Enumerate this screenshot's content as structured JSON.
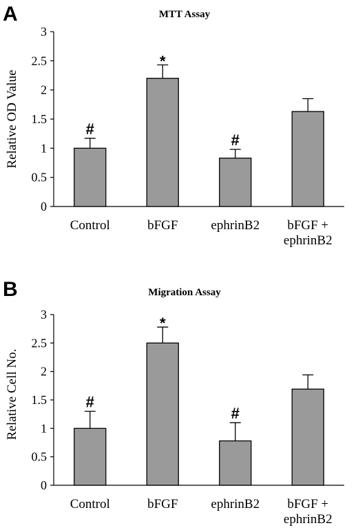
{
  "chart_data": [
    {
      "type": "bar",
      "panel_label": "A",
      "title": "MTT Assay",
      "ylabel": "Relative OD Value",
      "xlabel": "",
      "ylim": [
        0,
        3
      ],
      "yticks": [
        "0",
        "0.5",
        "1",
        "1.5",
        "2",
        "2.5",
        "3"
      ],
      "categories": [
        [
          "Control"
        ],
        [
          "bFGF"
        ],
        [
          "ephrinB2"
        ],
        [
          "bFGF +",
          "ephrinB2"
        ]
      ],
      "values": [
        1.0,
        2.2,
        0.83,
        1.63
      ],
      "errors": [
        0.17,
        0.23,
        0.15,
        0.22
      ],
      "markers": [
        "#",
        "*",
        "#",
        ""
      ],
      "bar_color": "#9a9a9a"
    },
    {
      "type": "bar",
      "panel_label": "B",
      "title": "Migration Assay",
      "ylabel": "Relative Cell No.",
      "xlabel": "",
      "ylim": [
        0,
        3
      ],
      "yticks": [
        "0",
        "0.5",
        "1",
        "1.5",
        "2",
        "2.5",
        "3"
      ],
      "categories": [
        [
          "Control"
        ],
        [
          "bFGF"
        ],
        [
          "ephrinB2"
        ],
        [
          "bFGF +",
          "ephrinB2"
        ]
      ],
      "values": [
        1.0,
        2.5,
        0.78,
        1.69
      ],
      "errors": [
        0.3,
        0.28,
        0.32,
        0.25
      ],
      "markers": [
        "#",
        "*",
        "#",
        ""
      ],
      "bar_color": "#9a9a9a"
    }
  ]
}
